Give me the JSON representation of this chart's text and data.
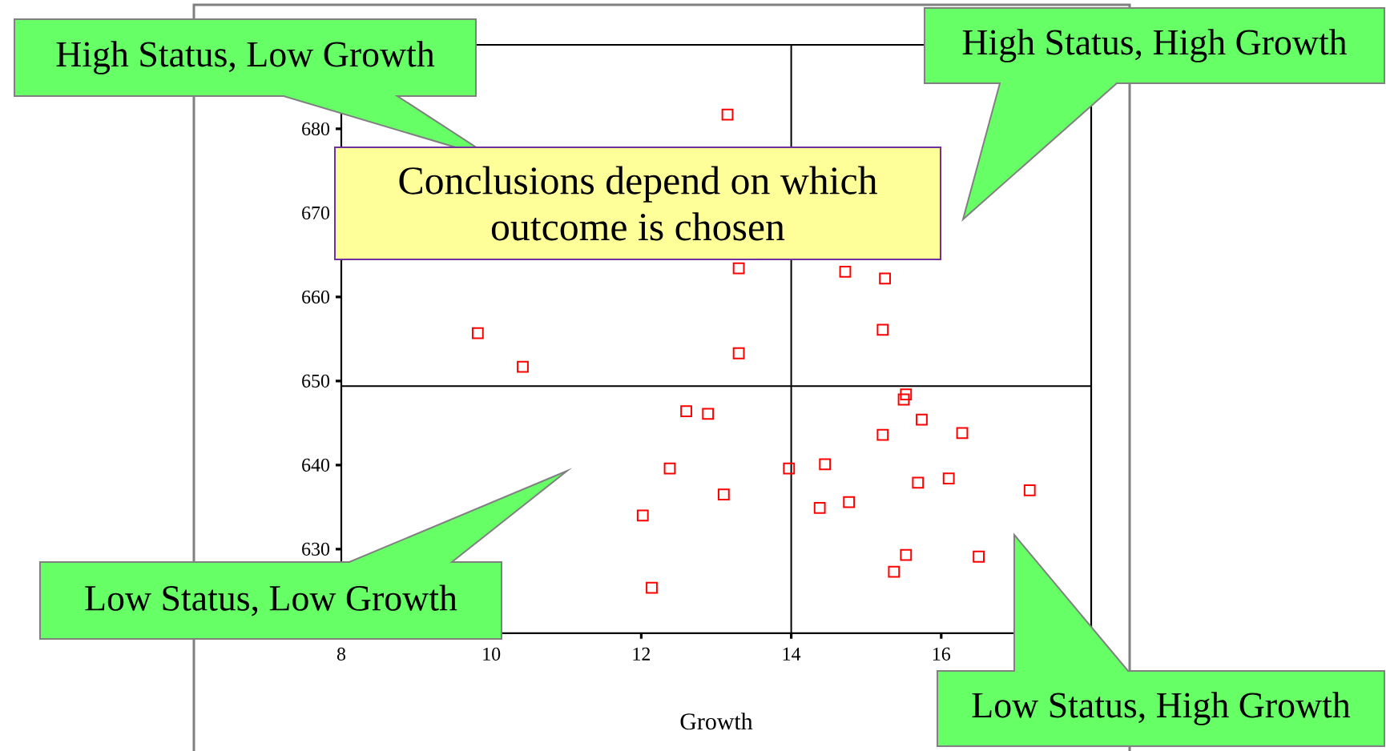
{
  "chart_data": {
    "type": "scatter",
    "xlabel": "Growth",
    "x": [
      13.15,
      13.3,
      14.72,
      15.25,
      15.22,
      9.82,
      10.42,
      13.3,
      15.53,
      15.5,
      15.74,
      15.22,
      16.28,
      12.6,
      12.89,
      12.38,
      13.97,
      14.45,
      13.1,
      12.02,
      14.38,
      14.77,
      15.69,
      16.1,
      17.18,
      15.53,
      15.37,
      16.5,
      12.14
    ],
    "values": [
      681.7,
      663.4,
      663.0,
      662.2,
      656.1,
      655.7,
      651.7,
      653.3,
      648.4,
      647.8,
      645.4,
      643.6,
      643.8,
      646.4,
      646.1,
      639.6,
      639.6,
      640.1,
      636.5,
      634.0,
      634.9,
      635.6,
      637.9,
      638.4,
      637.0,
      629.3,
      627.3,
      629.1,
      625.4
    ],
    "color": "#ff0000",
    "marker": "square",
    "xlim": [
      8,
      18
    ],
    "ylim": [
      620,
      690
    ],
    "xticks": [
      8,
      10,
      12,
      14,
      16
    ],
    "yticks": [
      630,
      640,
      650,
      660,
      670,
      680
    ],
    "ref_lines": [
      {
        "axis": "x",
        "value": 14,
        "color": "#000000"
      },
      {
        "axis": "y",
        "value": 649.4,
        "color": "#000000"
      }
    ],
    "annotations": [
      "High Status, Low Growth",
      "High Status, High Growth",
      "Conclusions depend on which outcome is chosen",
      "Low Status, Low Growth",
      "Low Status, High Growth"
    ]
  }
}
